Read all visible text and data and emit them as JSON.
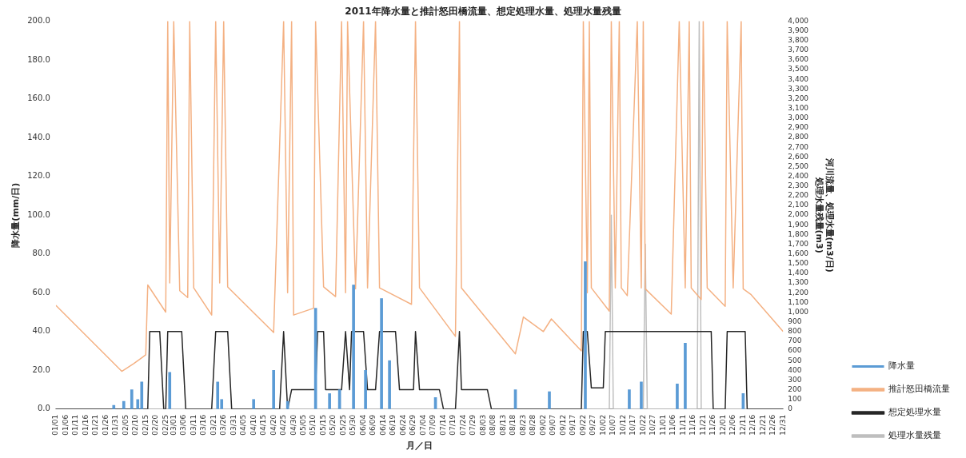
{
  "chart_data": {
    "type": "line",
    "title": "2011年降水量と推計怒田橋流量、想定処理水量、処理水量残量",
    "xlabel": "月／日",
    "ylabel": "降水量(mm/日)",
    "y2label": "河川流量、処理水量(m3/日)\n処理水量残量(m3)",
    "legend": "right",
    "xlim": [
      "--01-01",
      "--12-31"
    ],
    "xticks": [
      {
        "value": "--01-01",
        "label": "01/01"
      },
      {
        "value": "--01-06",
        "label": "01/06"
      },
      {
        "value": "--01-11",
        "label": "01/11"
      },
      {
        "value": "--01-16",
        "label": "01/16"
      },
      {
        "value": "--01-21",
        "label": "01/21"
      },
      {
        "value": "--01-26",
        "label": "01/26"
      },
      {
        "value": "--01-31",
        "label": "01/31"
      },
      {
        "value": "--02-05",
        "label": "02/05"
      },
      {
        "value": "--02-10",
        "label": "02/10"
      },
      {
        "value": "--02-15",
        "label": "02/15"
      },
      {
        "value": "--02-20",
        "label": "02/20"
      },
      {
        "value": "--02-25",
        "label": "02/25"
      },
      {
        "value": "--03-01",
        "label": "03/01"
      },
      {
        "value": "--03-06",
        "label": "03/06"
      },
      {
        "value": "--03-11",
        "label": "03/11"
      },
      {
        "value": "--03-16",
        "label": "03/16"
      },
      {
        "value": "--03-21",
        "label": "03/21"
      },
      {
        "value": "--03-26",
        "label": "03/26"
      },
      {
        "value": "--03-31",
        "label": "03/31"
      },
      {
        "value": "--04-05",
        "label": "04/05"
      },
      {
        "value": "--04-10",
        "label": "04/10"
      },
      {
        "value": "--04-15",
        "label": "04/15"
      },
      {
        "value": "--04-20",
        "label": "04/20"
      },
      {
        "value": "--04-25",
        "label": "04/25"
      },
      {
        "value": "--04-30",
        "label": "04/30"
      },
      {
        "value": "--05-05",
        "label": "05/05"
      },
      {
        "value": "--05-10",
        "label": "05/10"
      },
      {
        "value": "--05-15",
        "label": "05/15"
      },
      {
        "value": "--05-20",
        "label": "05/20"
      },
      {
        "value": "--05-25",
        "label": "05/25"
      },
      {
        "value": "--05-30",
        "label": "05/30"
      },
      {
        "value": "--06-04",
        "label": "06/04"
      },
      {
        "value": "--06-09",
        "label": "06/09"
      },
      {
        "value": "--06-14",
        "label": "06/14"
      },
      {
        "value": "--06-19",
        "label": "06/19"
      },
      {
        "value": "--06-24",
        "label": "06/24"
      },
      {
        "value": "--06-29",
        "label": "06/29"
      },
      {
        "value": "--07-04",
        "label": "07/04"
      },
      {
        "value": "--07-09",
        "label": "07/09"
      },
      {
        "value": "--07-14",
        "label": "07/14"
      },
      {
        "value": "--07-19",
        "label": "07/19"
      },
      {
        "value": "--07-24",
        "label": "07/24"
      },
      {
        "value": "--07-29",
        "label": "07/29"
      },
      {
        "value": "--08-03",
        "label": "08/03"
      },
      {
        "value": "--08-08",
        "label": "08/08"
      },
      {
        "value": "--08-13",
        "label": "08/13"
      },
      {
        "value": "--08-18",
        "label": "08/18"
      },
      {
        "value": "--08-23",
        "label": "08/23"
      },
      {
        "value": "--08-28",
        "label": "08/28"
      },
      {
        "value": "--09-02",
        "label": "09/02"
      },
      {
        "value": "--09-07",
        "label": "09/07"
      },
      {
        "value": "--09-12",
        "label": "09/12"
      },
      {
        "value": "--09-17",
        "label": "09/17"
      },
      {
        "value": "--09-22",
        "label": "09/22"
      },
      {
        "value": "--09-27",
        "label": "09/27"
      },
      {
        "value": "--10-02",
        "label": "10/02"
      },
      {
        "value": "--10-07",
        "label": "10/07"
      },
      {
        "value": "--10-12",
        "label": "10/12"
      },
      {
        "value": "--10-17",
        "label": "10/17"
      },
      {
        "value": "--10-22",
        "label": "10/22"
      },
      {
        "value": "--10-27",
        "label": "10/27"
      },
      {
        "value": "--11-01",
        "label": "11/01"
      },
      {
        "value": "--11-06",
        "label": "11/06"
      },
      {
        "value": "--11-11",
        "label": "11/11"
      },
      {
        "value": "--11-16",
        "label": "11/16"
      },
      {
        "value": "--11-21",
        "label": "11/21"
      },
      {
        "value": "--11-26",
        "label": "11/26"
      },
      {
        "value": "--12-01",
        "label": "12/01"
      },
      {
        "value": "--12-06",
        "label": "12/06"
      },
      {
        "value": "--12-11",
        "label": "12/11"
      },
      {
        "value": "--12-16",
        "label": "12/16"
      },
      {
        "value": "--12-21",
        "label": "12/21"
      },
      {
        "value": "--12-26",
        "label": "12/26"
      },
      {
        "value": "--12-31",
        "label": "12/31"
      }
    ],
    "ylim": [
      0,
      200
    ],
    "yticks": [
      {
        "value": 0,
        "label": "0.0"
      },
      {
        "value": 20,
        "label": "20.0"
      },
      {
        "value": 40,
        "label": "40.0"
      },
      {
        "value": 60,
        "label": "60.0"
      },
      {
        "value": 80,
        "label": "80.0"
      },
      {
        "value": 100,
        "label": "100.0"
      },
      {
        "value": 120,
        "label": "120.0"
      },
      {
        "value": 140,
        "label": "140.0"
      },
      {
        "value": 160,
        "label": "160.0"
      },
      {
        "value": 180,
        "label": "180.0"
      },
      {
        "value": 200,
        "label": "200.0"
      }
    ],
    "y2lim": [
      0,
      4000
    ],
    "y2ticks": [
      0,
      100,
      200,
      300,
      400,
      500,
      600,
      700,
      800,
      900,
      {
        "value": 1000,
        "label": "1,000"
      },
      {
        "value": 1100,
        "label": "1,100"
      },
      {
        "value": 1200,
        "label": "1,200"
      },
      {
        "value": 1300,
        "label": "1,300"
      },
      {
        "value": 1400,
        "label": "1,400"
      },
      {
        "value": 1500,
        "label": "1,500"
      },
      {
        "value": 1600,
        "label": "1,600"
      },
      {
        "value": 1700,
        "label": "1,700"
      },
      {
        "value": 1800,
        "label": "1,800"
      },
      {
        "value": 1900,
        "label": "1,900"
      },
      {
        "value": 2000,
        "label": "2,000"
      },
      {
        "value": 2100,
        "label": "2,100"
      },
      {
        "value": 2200,
        "label": "2,200"
      },
      {
        "value": 2300,
        "label": "2,300"
      },
      {
        "value": 2400,
        "label": "2,400"
      },
      {
        "value": 2500,
        "label": "2,500"
      },
      {
        "value": 2600,
        "label": "2,600"
      },
      {
        "value": 2700,
        "label": "2,700"
      },
      {
        "value": 2800,
        "label": "2,800"
      },
      {
        "value": 2900,
        "label": "2,900"
      },
      {
        "value": 3000,
        "label": "3,000"
      },
      {
        "value": 3100,
        "label": "3,100"
      },
      {
        "value": 3200,
        "label": "3,200"
      },
      {
        "value": 3300,
        "label": "3,300"
      },
      {
        "value": 3400,
        "label": "3,400"
      },
      {
        "value": 3500,
        "label": "3,500"
      },
      {
        "value": 3600,
        "label": "3,600"
      },
      {
        "value": 3700,
        "label": "3,700"
      },
      {
        "value": 3800,
        "label": "3,800"
      },
      {
        "value": 3900,
        "label": "3,900"
      },
      {
        "value": 4000,
        "label": "4,000"
      }
    ],
    "series": [
      {
        "name": "降水量",
        "type": "bar",
        "color": "#5b9bd5",
        "x": [
          "--01-30",
          "--02-04",
          "--02-08",
          "--02-11",
          "--02-13",
          "--02-27",
          "--03-23",
          "--03-25",
          "--04-10",
          "--04-20",
          "--04-27",
          "--05-11",
          "--05-18",
          "--05-23",
          "--05-30",
          "--06-05",
          "--06-13",
          "--06-17",
          "--07-10",
          "--08-19",
          "--09-05",
          "--09-23",
          "--10-15",
          "--10-21",
          "--11-08",
          "--11-12",
          "--12-11"
        ],
        "values": [
          2,
          4,
          10,
          5,
          14,
          19,
          14,
          5,
          5,
          20,
          4,
          52,
          8,
          10,
          64,
          20,
          57,
          25,
          6,
          10,
          9,
          76,
          10,
          14,
          13,
          34,
          8
        ]
      },
      {
        "name": "推計怒田橋流量",
        "axis": "y2",
        "color": "#f4b183",
        "x": [
          "--01-01",
          "--02-03",
          "--02-09",
          "--02-13",
          "--02-15",
          "--02-16",
          "--02-25",
          "--02-26",
          "--02-27",
          "--03-01",
          "--03-04",
          "--03-08",
          "--03-09",
          "--03-11",
          "--03-20",
          "--03-22",
          "--03-24",
          "--03-26",
          "--03-28",
          "--04-20",
          "--04-25",
          "--04-27",
          "--04-29",
          "--04-30",
          "--05-10",
          "--05-11",
          "--05-15",
          "--05-21",
          "--05-24",
          "--05-26",
          "--05-27",
          "--05-31",
          "--06-04",
          "--06-06",
          "--06-10",
          "--06-12",
          "--06-28",
          "--06-30",
          "--07-02",
          "--07-20",
          "--07-22",
          "--07-23",
          "--08-19",
          "--08-23",
          "--09-02",
          "--09-06",
          "--09-21",
          "--09-22",
          "--09-24",
          "--09-25",
          "--09-26",
          "--10-05",
          "--10-06",
          "--10-08",
          "--10-10",
          "--10-11",
          "--10-14",
          "--10-19",
          "--10-21",
          "--10-22",
          "--10-23",
          "--11-05",
          "--11-09",
          "--11-12",
          "--11-14",
          "--11-15",
          "--11-20",
          "--11-21",
          "--11-23",
          "--12-02",
          "--12-03",
          "--12-06",
          "--12-10",
          "--12-11",
          "--12-15",
          "--12-31"
        ],
        "values": [
          1070,
          390,
          470,
          530,
          560,
          1280,
          1000,
          4000,
          1300,
          4000,
          1220,
          1150,
          4000,
          1250,
          970,
          4000,
          1300,
          4000,
          1260,
          790,
          4000,
          1200,
          4000,
          970,
          1040,
          4000,
          1260,
          1160,
          4000,
          1200,
          4000,
          1240,
          4000,
          1250,
          4000,
          1250,
          1080,
          4000,
          1250,
          750,
          4000,
          1250,
          570,
          950,
          800,
          930,
          600,
          4000,
          1200,
          4000,
          1250,
          1010,
          4000,
          1250,
          4000,
          1250,
          1170,
          4000,
          1250,
          4000,
          1240,
          980,
          4000,
          1250,
          4000,
          1250,
          1130,
          4000,
          1250,
          1060,
          4000,
          1250,
          4000,
          1240,
          1180,
          800
        ]
      },
      {
        "name": "想定処理水量",
        "axis": "y2",
        "color": "#262626",
        "x": [
          "--01-01",
          "--02-16",
          "--02-17",
          "--02-22",
          "--02-24",
          "--02-25",
          "--02-26",
          "--03-05",
          "--03-07",
          "--03-20",
          "--03-22",
          "--03-28",
          "--03-30",
          "--04-23",
          "--04-25",
          "--04-27",
          "--04-29",
          "--05-11",
          "--05-12",
          "--05-15",
          "--05-16",
          "--05-24",
          "--05-26",
          "--05-28",
          "--05-29",
          "--06-04",
          "--06-06",
          "--06-10",
          "--06-12",
          "--06-20",
          "--06-22",
          "--06-29",
          "--06-30",
          "--07-02",
          "--07-12",
          "--07-14",
          "--07-20",
          "--07-22",
          "--07-23",
          "--08-05",
          "--08-07",
          "--09-21",
          "--09-22",
          "--09-24",
          "--09-26",
          "--10-02",
          "--10-03",
          "--11-25",
          "--11-26",
          "--12-02",
          "--12-03",
          "--12-12",
          "--12-13",
          "--12-31"
        ],
        "values": [
          0,
          0,
          800,
          800,
          0,
          0,
          800,
          800,
          0,
          0,
          800,
          800,
          0,
          0,
          800,
          0,
          200,
          200,
          800,
          800,
          200,
          200,
          800,
          200,
          800,
          800,
          200,
          200,
          800,
          800,
          200,
          200,
          800,
          200,
          200,
          0,
          0,
          800,
          200,
          200,
          0,
          0,
          800,
          800,
          220,
          220,
          800,
          800,
          0,
          0,
          800,
          800,
          0,
          0
        ]
      },
      {
        "name": "処理水量残量",
        "axis": "y2",
        "color": "#bfbfbf",
        "x": [
          "--01-01",
          "--10-05",
          "--10-06",
          "--10-07",
          "--10-22",
          "--10-23",
          "--10-24",
          "--11-18",
          "--11-19",
          "--11-20",
          "--12-31"
        ],
        "values": [
          0,
          0,
          2000,
          0,
          0,
          1700,
          0,
          0,
          4000,
          0,
          0
        ]
      }
    ]
  }
}
